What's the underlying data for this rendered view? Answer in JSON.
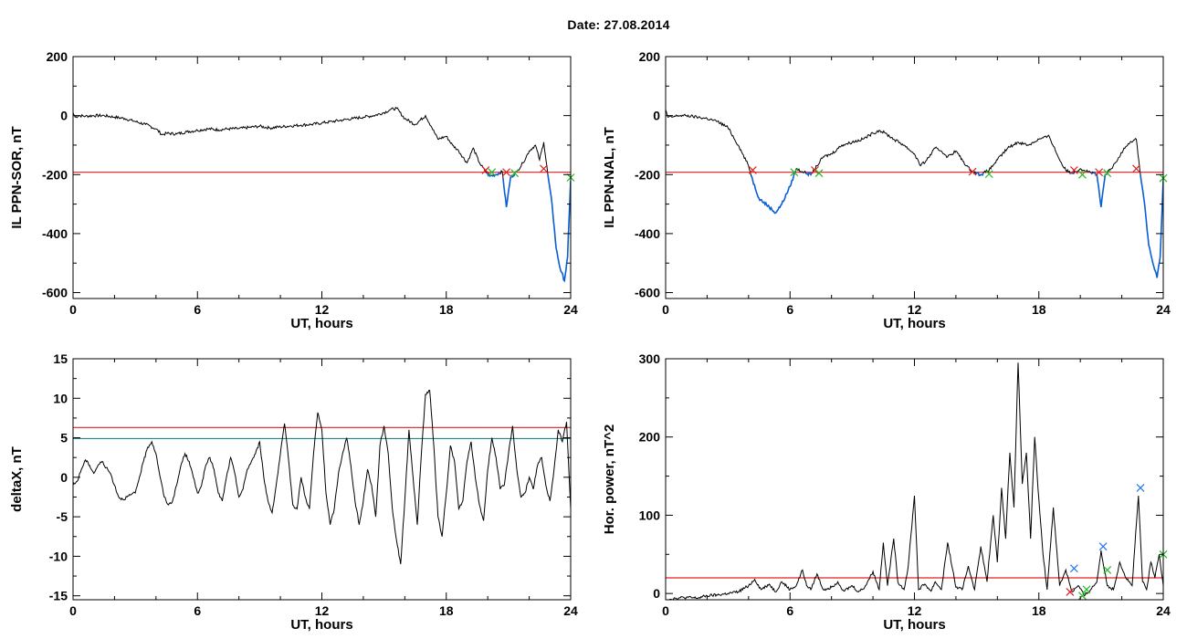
{
  "page": {
    "title": "Date:  27.08.2014"
  },
  "colors": {
    "axis": "#000000",
    "trace": "#000000",
    "below_threshold_trace": "#0a5fd6",
    "threshold_red": "#e02020",
    "threshold_teal": "#1a8c8c",
    "marker_red": "#e02020",
    "marker_green": "#22bb22",
    "marker_blue": "#2277ee"
  },
  "chart_data": [
    {
      "id": "p1",
      "type": "line",
      "title": "",
      "xlabel": "UT, hours",
      "ylabel": "IL PPN-SOR, nT",
      "xlim": [
        0,
        24
      ],
      "ylim": [
        -620,
        200
      ],
      "xticks": [
        0,
        6,
        12,
        18,
        24
      ],
      "yticks": [
        -600,
        -400,
        -200,
        0,
        200
      ],
      "grid": false,
      "threshold_lines": [
        {
          "y": -192,
          "color": "red"
        }
      ],
      "below_threshold_highlight": -192,
      "series": [
        {
          "x": [
            0,
            0.1,
            0.3,
            0.6,
            1,
            1.5,
            2,
            2.5,
            3,
            3.5,
            4,
            4.3,
            4.5,
            5,
            5.5,
            6,
            6.5,
            7,
            7.5,
            8,
            8.5,
            9,
            9.5,
            10,
            10.5,
            11,
            11.5,
            12,
            12.5,
            13,
            13.5,
            14,
            14.5,
            15,
            15.3,
            15.6,
            16,
            16.5,
            17,
            17.3,
            17.6,
            18,
            18.3,
            18.6,
            19,
            19.3,
            19.6,
            19.9,
            20.1,
            20.4,
            20.7,
            20.9,
            21.1,
            21.4,
            21.7,
            22,
            22.3,
            22.5,
            22.7,
            22.9,
            23.1,
            23.3,
            23.5,
            23.7,
            23.85,
            24
          ],
          "y": [
            10,
            -5,
            0,
            -2,
            0,
            0,
            -5,
            -10,
            -20,
            -30,
            -45,
            -65,
            -60,
            -62,
            -55,
            -50,
            -45,
            -48,
            -45,
            -44,
            -40,
            -36,
            -42,
            -38,
            -35,
            -32,
            -30,
            -25,
            -20,
            -15,
            -10,
            -5,
            0,
            10,
            20,
            25,
            -10,
            -30,
            0,
            -40,
            -80,
            -70,
            -100,
            -120,
            -160,
            -110,
            -160,
            -190,
            -205,
            -200,
            -190,
            -310,
            -210,
            -190,
            -160,
            -120,
            -100,
            -150,
            -90,
            -200,
            -300,
            -450,
            -520,
            -560,
            -480,
            -220
          ]
        }
      ],
      "markers": [
        {
          "x": 19.9,
          "y": -185,
          "color": "red"
        },
        {
          "x": 20.2,
          "y": -192,
          "color": "green"
        },
        {
          "x": 20.9,
          "y": -192,
          "color": "red"
        },
        {
          "x": 21.3,
          "y": -195,
          "color": "green"
        },
        {
          "x": 22.7,
          "y": -180,
          "color": "red"
        },
        {
          "x": 24,
          "y": -210,
          "color": "green"
        }
      ]
    },
    {
      "id": "p2",
      "type": "line",
      "title": "",
      "xlabel": "UT, hours",
      "ylabel": "IL PPN-NAL, nT",
      "xlim": [
        0,
        24
      ],
      "ylim": [
        -620,
        200
      ],
      "xticks": [
        0,
        6,
        12,
        18,
        24
      ],
      "yticks": [
        -600,
        -400,
        -200,
        0,
        200
      ],
      "grid": false,
      "threshold_lines": [
        {
          "y": -192,
          "color": "red"
        }
      ],
      "below_threshold_highlight": -192,
      "series": [
        {
          "x": [
            0,
            0.1,
            0.3,
            0.6,
            1,
            1.5,
            2,
            2.5,
            3,
            3.5,
            4,
            4.2,
            4.5,
            5,
            5.3,
            5.6,
            6,
            6.3,
            6.6,
            7,
            7.3,
            7.6,
            8,
            8.5,
            9,
            9.5,
            10,
            10.3,
            10.6,
            11,
            11.5,
            12,
            12.3,
            12.6,
            13,
            13.3,
            13.6,
            14,
            14.5,
            14.8,
            15.2,
            15.6,
            16,
            16.5,
            17,
            17.5,
            18,
            18.5,
            19,
            19.3,
            19.6,
            20,
            20.4,
            20.8,
            21,
            21.2,
            21.5,
            21.8,
            22.1,
            22.4,
            22.7,
            22.9,
            23.1,
            23.3,
            23.5,
            23.7,
            23.85,
            24
          ],
          "y": [
            20,
            -5,
            -5,
            0,
            0,
            -5,
            -10,
            -20,
            -40,
            -100,
            -170,
            -220,
            -280,
            -310,
            -330,
            -300,
            -240,
            -180,
            -190,
            -200,
            -170,
            -140,
            -130,
            -100,
            -90,
            -80,
            -60,
            -50,
            -60,
            -80,
            -100,
            -130,
            -170,
            -150,
            -110,
            -120,
            -140,
            -120,
            -170,
            -190,
            -200,
            -185,
            -150,
            -110,
            -90,
            -100,
            -80,
            -70,
            -150,
            -185,
            -195,
            -180,
            -190,
            -200,
            -310,
            -200,
            -180,
            -150,
            -110,
            -90,
            -80,
            -200,
            -300,
            -440,
            -500,
            -550,
            -480,
            -220
          ]
        }
      ],
      "markers": [
        {
          "x": 4.2,
          "y": -185,
          "color": "red"
        },
        {
          "x": 6.2,
          "y": -192,
          "color": "green"
        },
        {
          "x": 7.2,
          "y": -185,
          "color": "red"
        },
        {
          "x": 7.4,
          "y": -195,
          "color": "green"
        },
        {
          "x": 14.8,
          "y": -190,
          "color": "red"
        },
        {
          "x": 15.6,
          "y": -198,
          "color": "green"
        },
        {
          "x": 19.7,
          "y": -185,
          "color": "red"
        },
        {
          "x": 20.1,
          "y": -200,
          "color": "green"
        },
        {
          "x": 20.9,
          "y": -192,
          "color": "red"
        },
        {
          "x": 21.3,
          "y": -195,
          "color": "green"
        },
        {
          "x": 22.7,
          "y": -180,
          "color": "red"
        },
        {
          "x": 24,
          "y": -212,
          "color": "green"
        }
      ]
    },
    {
      "id": "p3",
      "type": "line",
      "title": "",
      "xlabel": "UT, hours",
      "ylabel": "deltaX, nT",
      "xlim": [
        0,
        24
      ],
      "ylim": [
        -15.5,
        15
      ],
      "xticks": [
        0,
        6,
        12,
        18,
        24
      ],
      "yticks": [
        -15,
        -10,
        -5,
        0,
        5,
        10,
        15
      ],
      "grid": false,
      "threshold_lines": [
        {
          "y": 6.3,
          "color": "red"
        },
        {
          "y": 4.9,
          "color": "teal"
        }
      ],
      "series": [
        {
          "x": [
            0,
            0.2,
            0.4,
            0.6,
            0.8,
            1.0,
            1.2,
            1.4,
            1.6,
            1.8,
            2.0,
            2.2,
            2.4,
            2.6,
            2.8,
            3.0,
            3.2,
            3.4,
            3.6,
            3.8,
            4.0,
            4.2,
            4.4,
            4.6,
            4.8,
            5.0,
            5.2,
            5.4,
            5.6,
            5.8,
            6.0,
            6.2,
            6.4,
            6.6,
            6.8,
            7.0,
            7.2,
            7.4,
            7.6,
            7.8,
            8.0,
            8.2,
            8.4,
            8.6,
            8.8,
            9.0,
            9.2,
            9.4,
            9.6,
            9.8,
            10.0,
            10.2,
            10.4,
            10.6,
            10.8,
            11.0,
            11.2,
            11.4,
            11.6,
            11.8,
            12.0,
            12.2,
            12.4,
            12.6,
            12.8,
            13.0,
            13.2,
            13.4,
            13.6,
            13.8,
            14.0,
            14.2,
            14.4,
            14.6,
            14.8,
            15.0,
            15.2,
            15.4,
            15.6,
            15.8,
            16.0,
            16.2,
            16.4,
            16.6,
            16.8,
            17.0,
            17.2,
            17.4,
            17.6,
            17.8,
            18.0,
            18.2,
            18.4,
            18.6,
            18.8,
            19.0,
            19.2,
            19.4,
            19.6,
            19.8,
            20.0,
            20.2,
            20.4,
            20.6,
            20.8,
            21.0,
            21.2,
            21.4,
            21.6,
            21.8,
            22.0,
            22.2,
            22.4,
            22.6,
            22.8,
            23.0,
            23.2,
            23.4,
            23.6,
            23.8,
            24.0
          ],
          "y": [
            -1,
            -0.5,
            1,
            2.2,
            1.5,
            0.5,
            1.5,
            2.0,
            1.2,
            0.5,
            -1.0,
            -2.5,
            -2.8,
            -2.5,
            -2.2,
            -2.0,
            0,
            2.0,
            3.8,
            4.5,
            3.0,
            0.0,
            -2.5,
            -3.5,
            -3.0,
            -1.0,
            1.5,
            3.0,
            2.0,
            0.0,
            -2.0,
            -1.0,
            1.5,
            2.5,
            1.0,
            -2.0,
            -3.0,
            0.0,
            2.5,
            0.5,
            -2.5,
            -1.5,
            1.0,
            2.0,
            3.0,
            4.5,
            0.0,
            -3.0,
            -4.5,
            -1.0,
            3.0,
            6.8,
            2.0,
            -3.5,
            -4.0,
            0.0,
            -2.5,
            -4.0,
            3.0,
            8.2,
            6.0,
            -2.0,
            -6.0,
            -4.0,
            0.5,
            3.0,
            5.0,
            1.5,
            -3.0,
            -6.0,
            -3.0,
            1.0,
            -1.0,
            -5.0,
            4.0,
            6.5,
            3.0,
            -4.0,
            -8.0,
            -11.0,
            -3.0,
            6.0,
            0.0,
            -6.0,
            3.0,
            10.5,
            11.0,
            4.0,
            -5.0,
            -7.5,
            -2.0,
            4.0,
            2.0,
            -4.0,
            -3.0,
            2.0,
            4.5,
            0.0,
            -3.5,
            -5.5,
            1.0,
            5.0,
            2.5,
            -1.5,
            -1.0,
            3.0,
            6.5,
            1.0,
            -2.5,
            -2.0,
            0.0,
            -1.5,
            1.5,
            2.5,
            -1.0,
            -3.0,
            1.0,
            6.0,
            4.5,
            7.0,
            -4.0
          ]
        }
      ],
      "markers": []
    },
    {
      "id": "p4",
      "type": "line",
      "title": "",
      "xlabel": "UT, hours",
      "ylabel": "Hor. power, nT^2",
      "xlim": [
        0,
        24
      ],
      "ylim": [
        -8,
        300
      ],
      "xticks": [
        0,
        6,
        12,
        18,
        24
      ],
      "yticks": [
        0,
        100,
        200,
        300
      ],
      "grid": false,
      "threshold_lines": [
        {
          "y": 20,
          "color": "red"
        }
      ],
      "series": [
        {
          "x": [
            0,
            0.5,
            1.0,
            1.5,
            2.0,
            2.5,
            3.0,
            3.5,
            4.0,
            4.3,
            4.6,
            5.0,
            5.3,
            5.6,
            6.0,
            6.3,
            6.6,
            6.8,
            7.0,
            7.3,
            7.6,
            8.0,
            8.3,
            8.6,
            9.0,
            9.3,
            9.6,
            10.0,
            10.3,
            10.5,
            10.7,
            11.0,
            11.2,
            11.5,
            11.7,
            12.0,
            12.2,
            12.5,
            12.8,
            13.0,
            13.3,
            13.6,
            14.0,
            14.3,
            14.6,
            14.9,
            15.2,
            15.5,
            15.8,
            16.0,
            16.2,
            16.4,
            16.6,
            16.8,
            17.0,
            17.2,
            17.4,
            17.6,
            17.8,
            18.0,
            18.2,
            18.4,
            18.7,
            19.0,
            19.3,
            19.6,
            19.9,
            20.2,
            20.5,
            20.8,
            21.0,
            21.3,
            21.6,
            21.9,
            22.2,
            22.5,
            22.8,
            23.0,
            23.2,
            23.4,
            23.6,
            23.8,
            24.0
          ],
          "y": [
            -8,
            -6,
            -5,
            -6,
            -3,
            -2,
            0,
            2,
            10,
            18,
            5,
            12,
            2,
            15,
            5,
            10,
            30,
            10,
            5,
            25,
            5,
            8,
            15,
            3,
            10,
            2,
            8,
            28,
            5,
            65,
            10,
            70,
            15,
            5,
            35,
            125,
            5,
            12,
            3,
            15,
            5,
            65,
            8,
            5,
            35,
            5,
            60,
            15,
            100,
            40,
            135,
            70,
            180,
            110,
            295,
            140,
            180,
            70,
            200,
            120,
            50,
            5,
            110,
            10,
            30,
            2,
            10,
            -3,
            5,
            15,
            55,
            10,
            5,
            40,
            20,
            10,
            125,
            15,
            5,
            40,
            20,
            50,
            10
          ]
        }
      ],
      "markers": [
        {
          "x": 19.7,
          "y": 32,
          "color": "blue"
        },
        {
          "x": 19.5,
          "y": 2,
          "color": "red"
        },
        {
          "x": 20.1,
          "y": -3,
          "color": "green"
        },
        {
          "x": 20.3,
          "y": 5,
          "color": "green"
        },
        {
          "x": 21.1,
          "y": 60,
          "color": "blue"
        },
        {
          "x": 21.3,
          "y": 30,
          "color": "green"
        },
        {
          "x": 22.9,
          "y": 135,
          "color": "blue"
        },
        {
          "x": 24,
          "y": 50,
          "color": "green"
        }
      ]
    }
  ]
}
